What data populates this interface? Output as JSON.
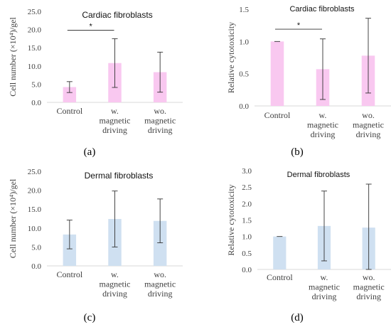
{
  "chart_data": [
    {
      "type": "bar",
      "panel_label": "(a)",
      "title": "Cardiac fibroblasts",
      "ylabel": "Cell number (×10⁴)/gel",
      "ylim": [
        0,
        25
      ],
      "yticks": [
        "0.0",
        "5.0",
        "10.0",
        "15.0",
        "20.0",
        "25.0"
      ],
      "categories": [
        [
          "Control"
        ],
        [
          "w.",
          "magnetic",
          "driving"
        ],
        [
          "wo.",
          "magnetic",
          "driving"
        ]
      ],
      "values": [
        4.2,
        10.8,
        8.3
      ],
      "errors": [
        1.5,
        6.7,
        5.5
      ],
      "bar_color": "#f9c8f0",
      "significance": {
        "from": 0,
        "to": 1,
        "at": 19.8,
        "label": "*"
      },
      "grid": false
    },
    {
      "type": "bar",
      "panel_label": "(b)",
      "title": "Cardiac fibroblasts",
      "ylabel": "Relative cytotoxicity",
      "ylim": [
        0,
        1.5
      ],
      "yticks": [
        "0.0",
        "0.5",
        "1.0",
        "1.5"
      ],
      "categories": [
        [
          "Control"
        ],
        [
          "w.",
          "magnetic",
          "driving"
        ],
        [
          "wo.",
          "magnetic",
          "driving"
        ]
      ],
      "values": [
        1.0,
        0.57,
        0.78
      ],
      "errors": [
        0.0,
        0.47,
        0.58
      ],
      "bar_color": "#f9c8f0",
      "significance": {
        "from": 0,
        "to": 1,
        "at": 1.19,
        "label": "*"
      },
      "grid": false
    },
    {
      "type": "bar",
      "panel_label": "(c)",
      "title": "Dermal fibroblasts",
      "ylabel": "Cell number (×10⁴)/gel",
      "ylim": [
        0,
        25
      ],
      "yticks": [
        "0.0",
        "5.0",
        "10.0",
        "15.0",
        "20.0",
        "25.0"
      ],
      "categories": [
        [
          "Control"
        ],
        [
          "w.",
          "magnetic",
          "driving"
        ],
        [
          "wo.",
          "magnetic",
          "driving"
        ]
      ],
      "values": [
        8.3,
        12.4,
        11.9
      ],
      "errors": [
        3.8,
        7.4,
        5.8
      ],
      "bar_color": "#cfe0f1",
      "significance": null,
      "grid": false
    },
    {
      "type": "bar",
      "panel_label": "(d)",
      "title": "Dermal fibroblasts",
      "ylabel": "Relative cytotoxicity",
      "ylim": [
        0,
        3.0
      ],
      "yticks": [
        "0.0",
        "0.5",
        "1.0",
        "1.5",
        "2.0",
        "2.5",
        "3.0"
      ],
      "categories": [
        [
          "Control"
        ],
        [
          "w.",
          "magnetic",
          "driving"
        ],
        [
          "wo.",
          "magnetic",
          "driving"
        ]
      ],
      "values": [
        1.0,
        1.32,
        1.27
      ],
      "errors": [
        0.0,
        1.06,
        1.32
      ],
      "bar_color": "#cfe0f1",
      "significance": null,
      "grid": false
    }
  ]
}
